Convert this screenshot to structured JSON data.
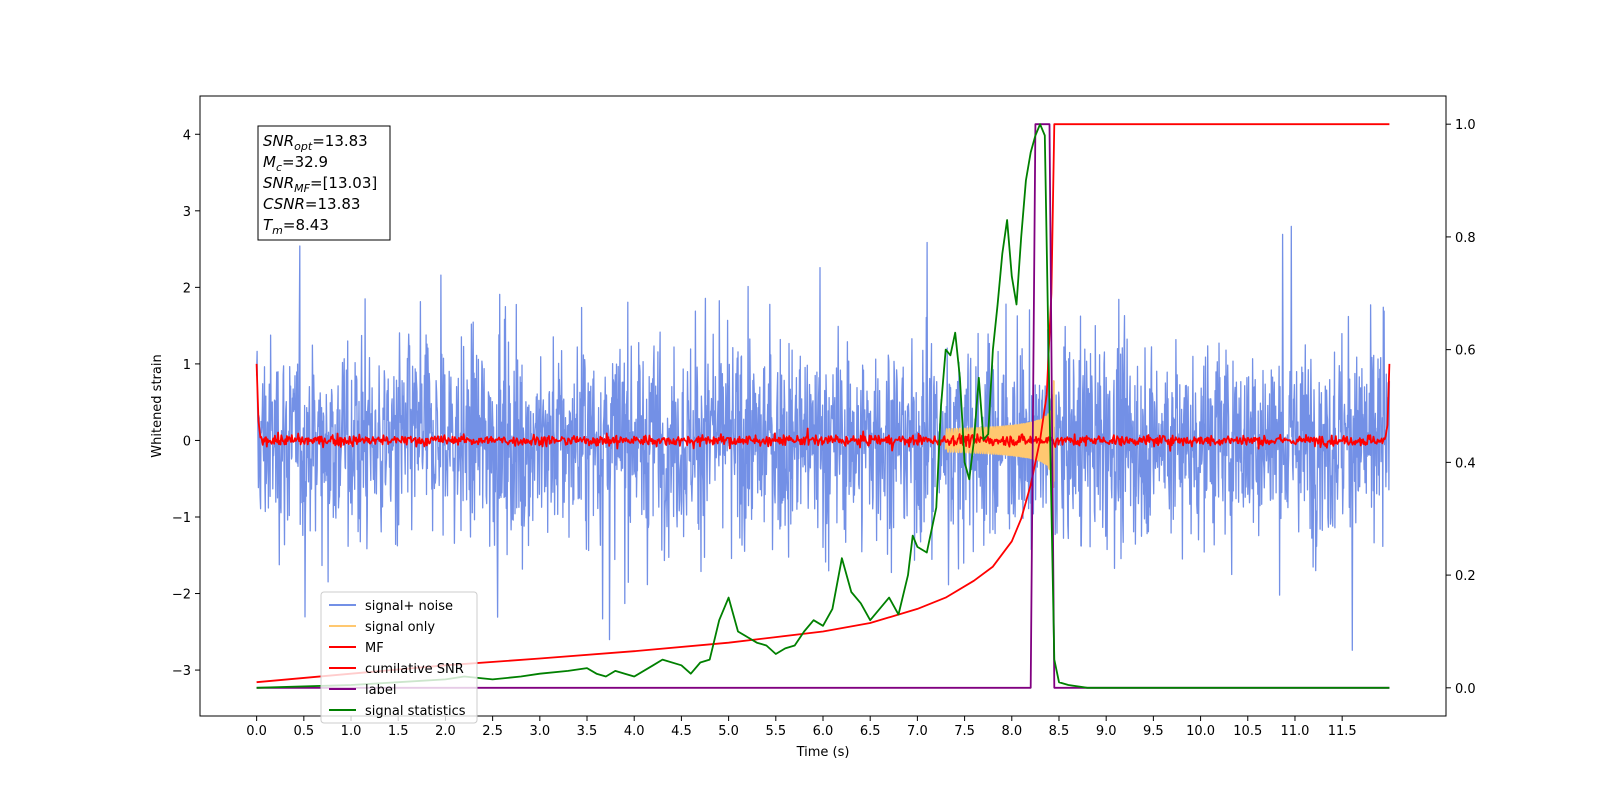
{
  "chart_data": {
    "type": "line",
    "xlabel": "Time (s)",
    "ylabel": "Whitened strain",
    "x_ticks": [
      "0.0",
      "0.5",
      "1.0",
      "1.5",
      "2.0",
      "2.5",
      "3.0",
      "3.5",
      "4.0",
      "4.5",
      "5.0",
      "5.5",
      "6.0",
      "6.5",
      "7.0",
      "7.5",
      "8.0",
      "8.5",
      "9.0",
      "9.5",
      "10.0",
      "10.5",
      "11.0",
      "11.5"
    ],
    "xlim": [
      -0.6,
      12.6
    ],
    "y_left_ticks": [
      "4",
      "3",
      "2",
      "1",
      "0",
      "−1",
      "−2",
      "−3"
    ],
    "y_left_lim": [
      -3.6,
      4.5
    ],
    "y_right_ticks": [
      "1.0",
      "0.8",
      "0.6",
      "0.4",
      "0.2",
      "0.0"
    ],
    "y_right_lim": [
      -0.05,
      1.05
    ],
    "annotation": {
      "lines": [
        {
          "sym": "SNR",
          "sub": "opt",
          "value": "=13.83"
        },
        {
          "sym": "M",
          "sub": "c",
          "value": "=32.9"
        },
        {
          "sym": "SNR",
          "sub": "MF",
          "value": "=[13.03]"
        },
        {
          "sym": "CSNR",
          "sub": "",
          "value": "=13.83"
        },
        {
          "sym": "T",
          "sub": "m",
          "value": "=8.43"
        }
      ]
    },
    "legend_position": "bottom-left",
    "series": [
      {
        "name": "signal+ noise",
        "color": "#7390e6",
        "axis": "left",
        "style": "noise",
        "x_range": [
          0,
          12
        ],
        "amplitude": 1.1
      },
      {
        "name": "signal only",
        "color": "#ffc870",
        "axis": "left",
        "style": "chirp",
        "x_range": [
          7.3,
          8.45
        ],
        "peak": 1.0
      },
      {
        "name": "MF",
        "color": "#ff0000",
        "axis": "left",
        "style": "mf",
        "x_range": [
          0,
          12
        ],
        "edge_value": 1.0,
        "noise_amplitude": 0.07
      },
      {
        "name": "cumilative SNR",
        "color": "#ff0000",
        "axis": "right",
        "x": [
          0.0,
          1.0,
          2.0,
          3.0,
          4.0,
          5.0,
          5.5,
          6.0,
          6.5,
          7.0,
          7.3,
          7.6,
          7.8,
          8.0,
          8.1,
          8.2,
          8.3,
          8.37,
          8.42,
          8.45,
          12.0
        ],
        "y": [
          0.01,
          0.025,
          0.04,
          0.052,
          0.065,
          0.08,
          0.09,
          0.1,
          0.115,
          0.14,
          0.16,
          0.19,
          0.215,
          0.26,
          0.3,
          0.36,
          0.44,
          0.52,
          0.7,
          1.0,
          1.0
        ]
      },
      {
        "name": "label",
        "color": "#800080",
        "axis": "right",
        "x": [
          0.0,
          8.2,
          8.25,
          8.4,
          8.45,
          12.0
        ],
        "y": [
          0.0,
          0.0,
          1.0,
          1.0,
          0.0,
          0.0
        ]
      },
      {
        "name": "signal statistics",
        "color": "#008000",
        "axis": "right",
        "x": [
          0.0,
          1.0,
          1.5,
          2.0,
          2.2,
          2.5,
          2.8,
          3.0,
          3.3,
          3.5,
          3.6,
          3.7,
          3.8,
          3.9,
          4.0,
          4.2,
          4.3,
          4.5,
          4.6,
          4.7,
          4.8,
          4.9,
          5.0,
          5.1,
          5.2,
          5.3,
          5.4,
          5.5,
          5.6,
          5.7,
          5.8,
          5.9,
          6.0,
          6.1,
          6.2,
          6.3,
          6.4,
          6.5,
          6.6,
          6.7,
          6.8,
          6.9,
          6.95,
          7.0,
          7.1,
          7.2,
          7.25,
          7.3,
          7.35,
          7.4,
          7.45,
          7.5,
          7.55,
          7.6,
          7.65,
          7.7,
          7.75,
          7.8,
          7.85,
          7.9,
          7.95,
          8.0,
          8.05,
          8.1,
          8.15,
          8.2,
          8.25,
          8.3,
          8.35,
          8.4,
          8.45,
          8.5,
          8.6,
          8.8,
          9.0,
          12.0
        ],
        "y": [
          0.0,
          0.005,
          0.01,
          0.015,
          0.02,
          0.015,
          0.02,
          0.025,
          0.03,
          0.035,
          0.025,
          0.02,
          0.03,
          0.025,
          0.02,
          0.04,
          0.05,
          0.04,
          0.025,
          0.045,
          0.05,
          0.12,
          0.16,
          0.1,
          0.09,
          0.08,
          0.075,
          0.06,
          0.07,
          0.075,
          0.1,
          0.12,
          0.11,
          0.14,
          0.23,
          0.17,
          0.15,
          0.12,
          0.14,
          0.16,
          0.13,
          0.2,
          0.27,
          0.25,
          0.24,
          0.32,
          0.5,
          0.6,
          0.59,
          0.63,
          0.55,
          0.4,
          0.37,
          0.44,
          0.55,
          0.44,
          0.45,
          0.6,
          0.68,
          0.77,
          0.83,
          0.73,
          0.68,
          0.8,
          0.9,
          0.95,
          0.98,
          1.0,
          0.98,
          0.5,
          0.05,
          0.01,
          0.005,
          0.0,
          0.0,
          0.0
        ]
      }
    ]
  }
}
